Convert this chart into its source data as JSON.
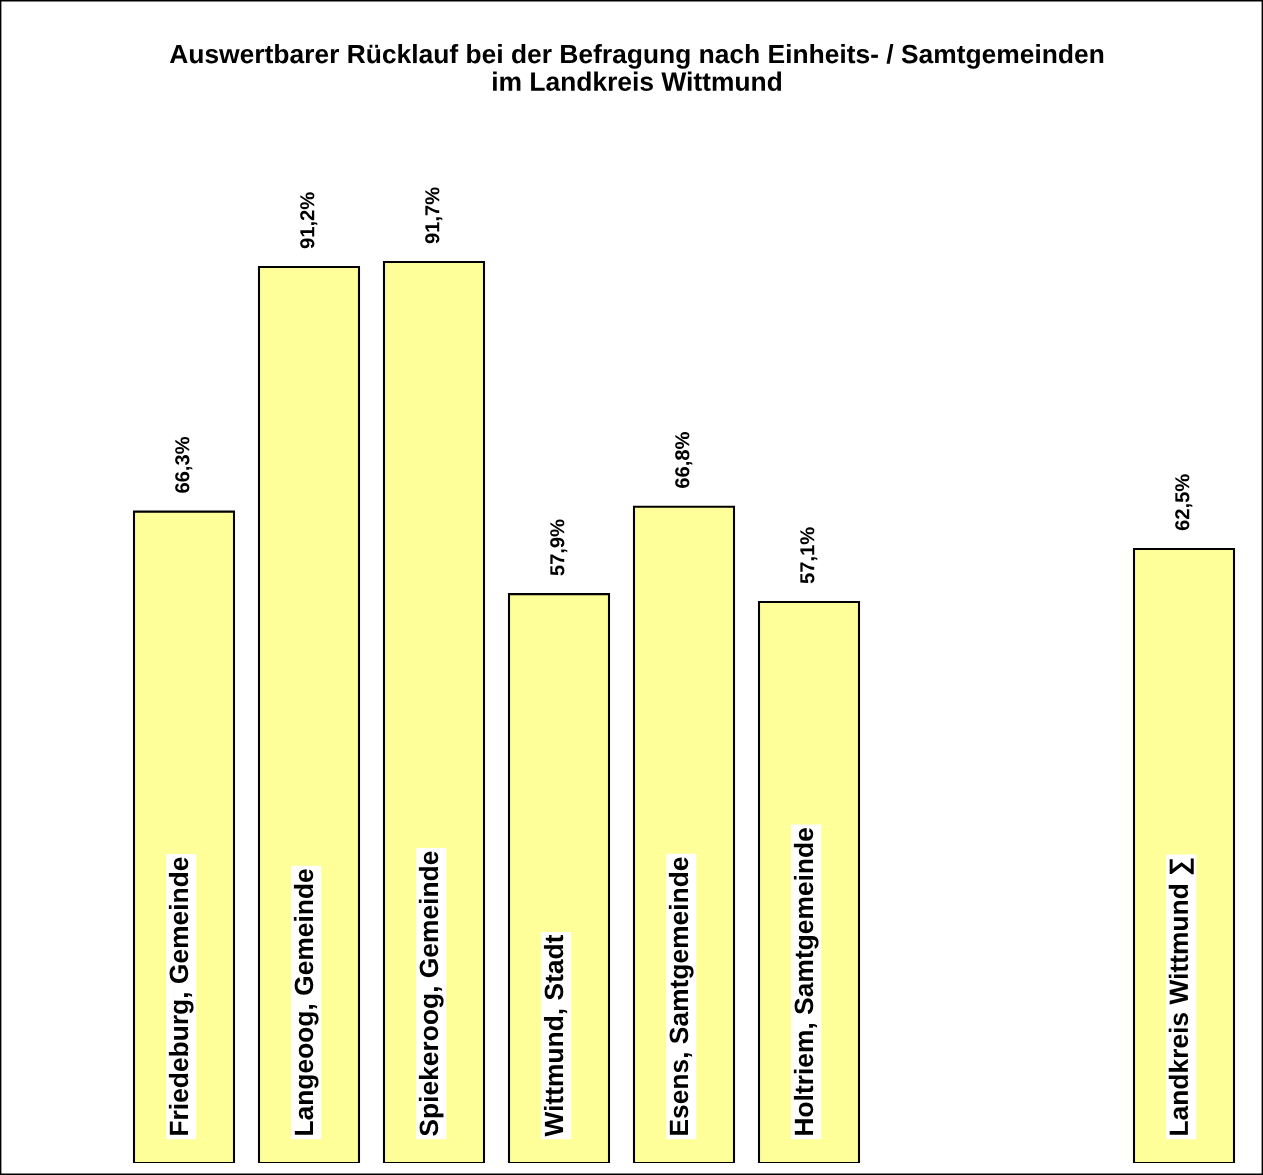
{
  "chart_data": {
    "type": "bar",
    "title": "Auswertbarer Rücklauf bei der Befragung nach Einheits- / Samtgemeinden\nim Landkreis Wittmund",
    "categories": [
      "Friedeburg, Gemeinde",
      "Langeoog, Gemeinde",
      "Spiekeroog, Gemeinde",
      "Wittmund, Stadt",
      "Esens, Samtgemeinde",
      "Holtriem, Samtgemeinde",
      null,
      null,
      "Landkreis Wittmund ∑"
    ],
    "values": [
      66.3,
      91.2,
      91.7,
      57.9,
      66.8,
      57.1,
      null,
      null,
      62.5
    ],
    "value_labels": [
      "66,3%",
      "91,2%",
      "91,7%",
      "57,9%",
      "66,8%",
      "57,1%",
      null,
      null,
      "62,5%"
    ],
    "color": "#ffff99"
  }
}
